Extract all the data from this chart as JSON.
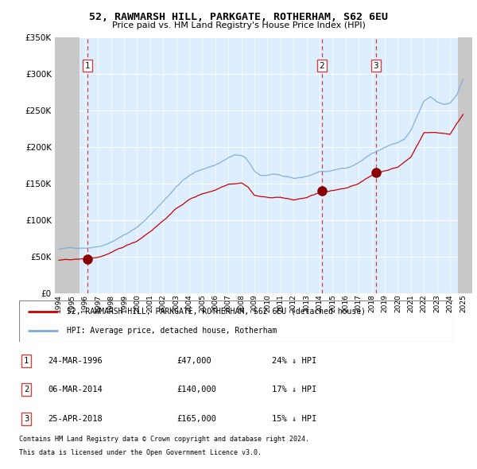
{
  "title": "52, RAWMARSH HILL, PARKGATE, ROTHERHAM, S62 6EU",
  "subtitle": "Price paid vs. HM Land Registry's House Price Index (HPI)",
  "ytick_vals": [
    0,
    50000,
    100000,
    150000,
    200000,
    250000,
    300000,
    350000
  ],
  "ylim": [
    0,
    350000
  ],
  "xlim_start": 1993.7,
  "xlim_end": 2025.7,
  "xticks": [
    1994,
    1995,
    1996,
    1997,
    1998,
    1999,
    2000,
    2001,
    2002,
    2003,
    2004,
    2005,
    2006,
    2007,
    2008,
    2009,
    2010,
    2011,
    2012,
    2013,
    2014,
    2015,
    2016,
    2017,
    2018,
    2019,
    2020,
    2021,
    2022,
    2023,
    2024,
    2025
  ],
  "sales": [
    {
      "year": 1996.19,
      "price": 47000,
      "label": "1",
      "date": "24-MAR-1996",
      "pct": "24%"
    },
    {
      "year": 2014.17,
      "price": 140000,
      "label": "2",
      "date": "06-MAR-2014",
      "pct": "17%"
    },
    {
      "year": 2018.31,
      "price": 165000,
      "label": "3",
      "date": "25-APR-2018",
      "pct": "15%"
    }
  ],
  "hpi_color": "#7aaadd",
  "property_color": "#cc0000",
  "sale_dot_color": "#880000",
  "dashed_line_color": "#cc4444",
  "legend_entries": [
    "52, RAWMARSH HILL, PARKGATE, ROTHERHAM, S62 6EU (detached house)",
    "HPI: Average price, detached house, Rotherham"
  ],
  "footer_line1": "Contains HM Land Registry data © Crown copyright and database right 2024.",
  "footer_line2": "This data is licensed under the Open Government Licence v3.0.",
  "background_main": "#ddeeff",
  "hatch_left_end": 1995.58,
  "hatch_right_start": 2024.58
}
